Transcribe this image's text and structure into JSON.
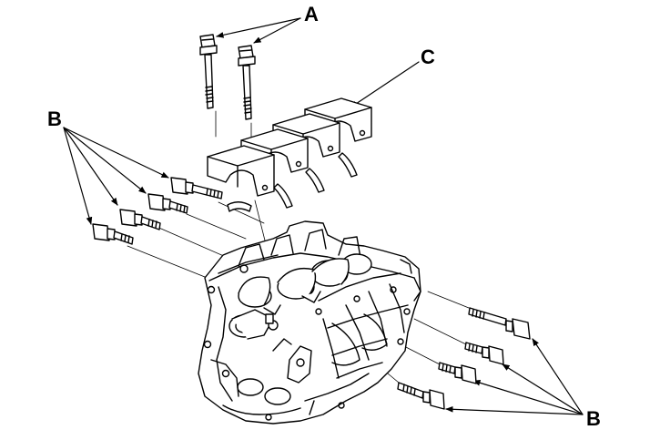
{
  "figure": {
    "callouts": {
      "a": "A",
      "b_left": "B",
      "b_right": "B",
      "c": "C"
    },
    "line_color": "#000000",
    "background": "#ffffff"
  }
}
